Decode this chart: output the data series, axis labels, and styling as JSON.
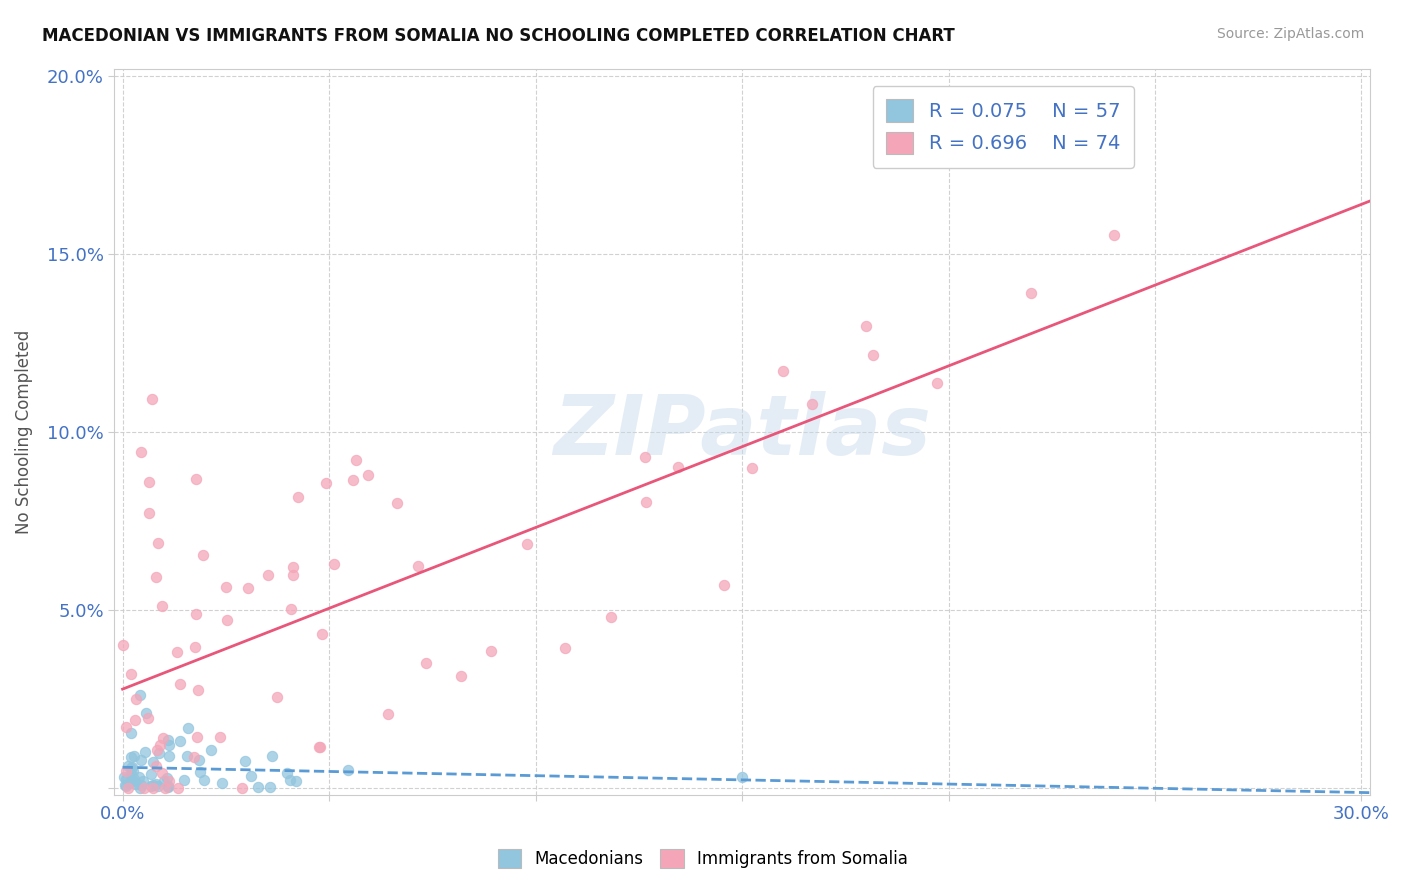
{
  "title": "MACEDONIAN VS IMMIGRANTS FROM SOMALIA NO SCHOOLING COMPLETED CORRELATION CHART",
  "source": "Source: ZipAtlas.com",
  "ylabel": "No Schooling Completed",
  "xlim": [
    -0.002,
    0.302
  ],
  "ylim": [
    -0.002,
    0.202
  ],
  "xticks": [
    0.0,
    0.05,
    0.1,
    0.15,
    0.2,
    0.25,
    0.3
  ],
  "yticks": [
    0.0,
    0.05,
    0.1,
    0.15,
    0.2
  ],
  "xtick_labels": [
    "0.0%",
    "",
    "",
    "",
    "",
    "",
    "30.0%"
  ],
  "ytick_labels": [
    "",
    "5.0%",
    "10.0%",
    "15.0%",
    "20.0%"
  ],
  "macedonian_color": "#92C5DE",
  "somalia_color": "#F4A6B8",
  "macedonian_line_color": "#5B9BD5",
  "somalia_line_color": "#E8567A",
  "watermark": "ZIPatlas",
  "n_mac": 57,
  "n_som": 74,
  "r_mac": 0.075,
  "r_som": 0.696
}
